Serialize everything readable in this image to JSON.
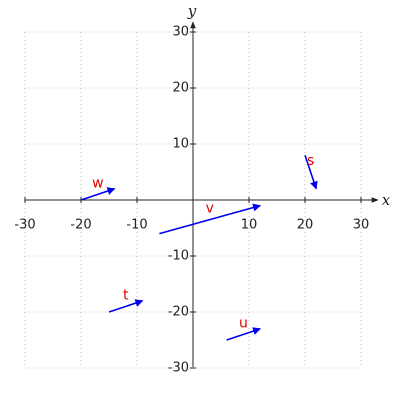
{
  "chart_data": {
    "type": "vector",
    "x_label": "x",
    "y_label": "y",
    "xlim": [
      -30,
      30
    ],
    "ylim": [
      -30,
      30
    ],
    "xticks": [
      -30,
      -20,
      -10,
      10,
      20,
      30
    ],
    "yticks": [
      -30,
      -20,
      -10,
      10,
      20,
      30
    ],
    "grid": true,
    "color": "#0000ee",
    "label_color": "#e00000",
    "series": [
      {
        "name": "w",
        "start": [
          -20,
          0
        ],
        "end": [
          -14,
          2
        ]
      },
      {
        "name": "s",
        "start": [
          20,
          8
        ],
        "end": [
          22,
          2
        ]
      },
      {
        "name": "v",
        "start": [
          -6,
          -6
        ],
        "end": [
          12,
          -1
        ]
      },
      {
        "name": "t",
        "start": [
          -15,
          -20
        ],
        "end": [
          -9,
          -18
        ]
      },
      {
        "name": "u",
        "start": [
          6,
          -25
        ],
        "end": [
          12,
          -23
        ]
      }
    ]
  }
}
